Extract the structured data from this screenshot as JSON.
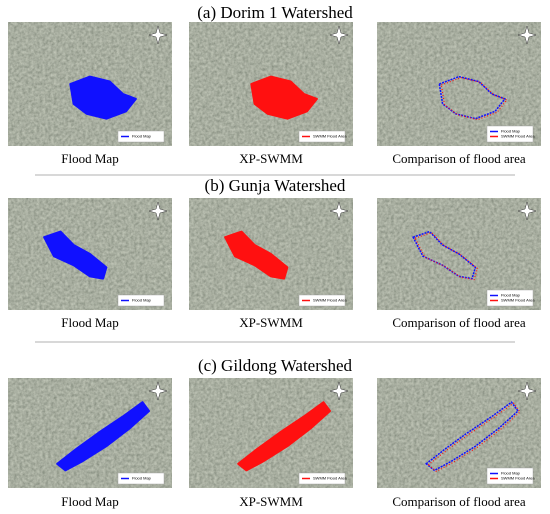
{
  "sections": [
    {
      "title": "(a)   Dorim 1 Watershed",
      "panels": [
        {
          "caption": "Flood Map",
          "legend": [
            "Flood Map"
          ]
        },
        {
          "caption": "XP-SWMM",
          "legend": [
            "SWMM Flood Area"
          ]
        },
        {
          "caption": "Comparison of flood area",
          "legend": [
            "Flood Map",
            "SWMM Flood Area"
          ]
        }
      ]
    },
    {
      "title": "(b) Gunja Watershed",
      "panels": [
        {
          "caption": "Flood Map",
          "legend": [
            "Flood Map"
          ]
        },
        {
          "caption": "XP-SWMM",
          "legend": [
            "SWMM Flood Area"
          ]
        },
        {
          "caption": "Comparison of flood area",
          "legend": [
            "Flood Map",
            "SWMM Flood Area"
          ]
        }
      ]
    },
    {
      "title": "(c) Gildong Watershed",
      "panels": [
        {
          "caption": "Flood Map",
          "legend": [
            "Flood Map"
          ]
        },
        {
          "caption": "XP-SWMM",
          "legend": [
            "SWMM Flood Area"
          ]
        },
        {
          "caption": "Comparison of flood area",
          "legend": [
            "Flood Map",
            "SWMM Flood Area"
          ]
        }
      ]
    }
  ]
}
